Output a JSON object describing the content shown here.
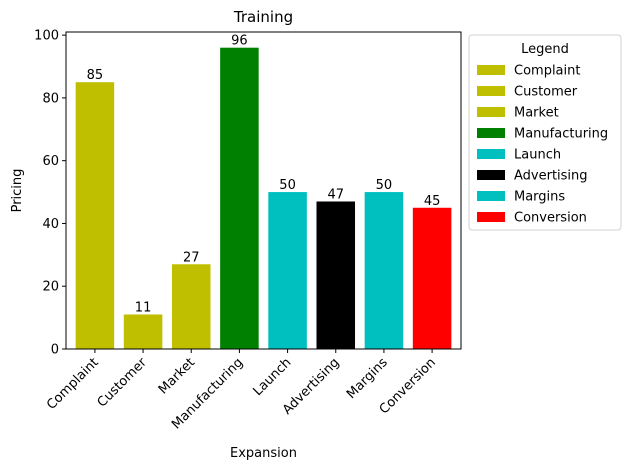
{
  "chart_data": {
    "type": "bar",
    "title": "Training",
    "xlabel": "Expansion",
    "ylabel": "Pricing",
    "categories": [
      "Complaint",
      "Customer",
      "Market",
      "Manufacturing",
      "Launch",
      "Advertising",
      "Margins",
      "Conversion"
    ],
    "values": [
      85,
      11,
      27,
      96,
      50,
      47,
      50,
      45
    ],
    "colors": [
      "#bfbf00",
      "#bfbf00",
      "#bfbf00",
      "#008000",
      "#00bfbf",
      "#000000",
      "#00bfbf",
      "#ff0000"
    ],
    "ylim": [
      0,
      101
    ],
    "yticks": [
      0,
      20,
      40,
      60,
      80,
      100
    ],
    "grid": false,
    "legend": {
      "title": "Legend",
      "placement": "outside-right-top",
      "entries": [
        "Complaint",
        "Customer",
        "Market",
        "Manufacturing",
        "Launch",
        "Advertising",
        "Margins",
        "Conversion"
      ]
    }
  }
}
